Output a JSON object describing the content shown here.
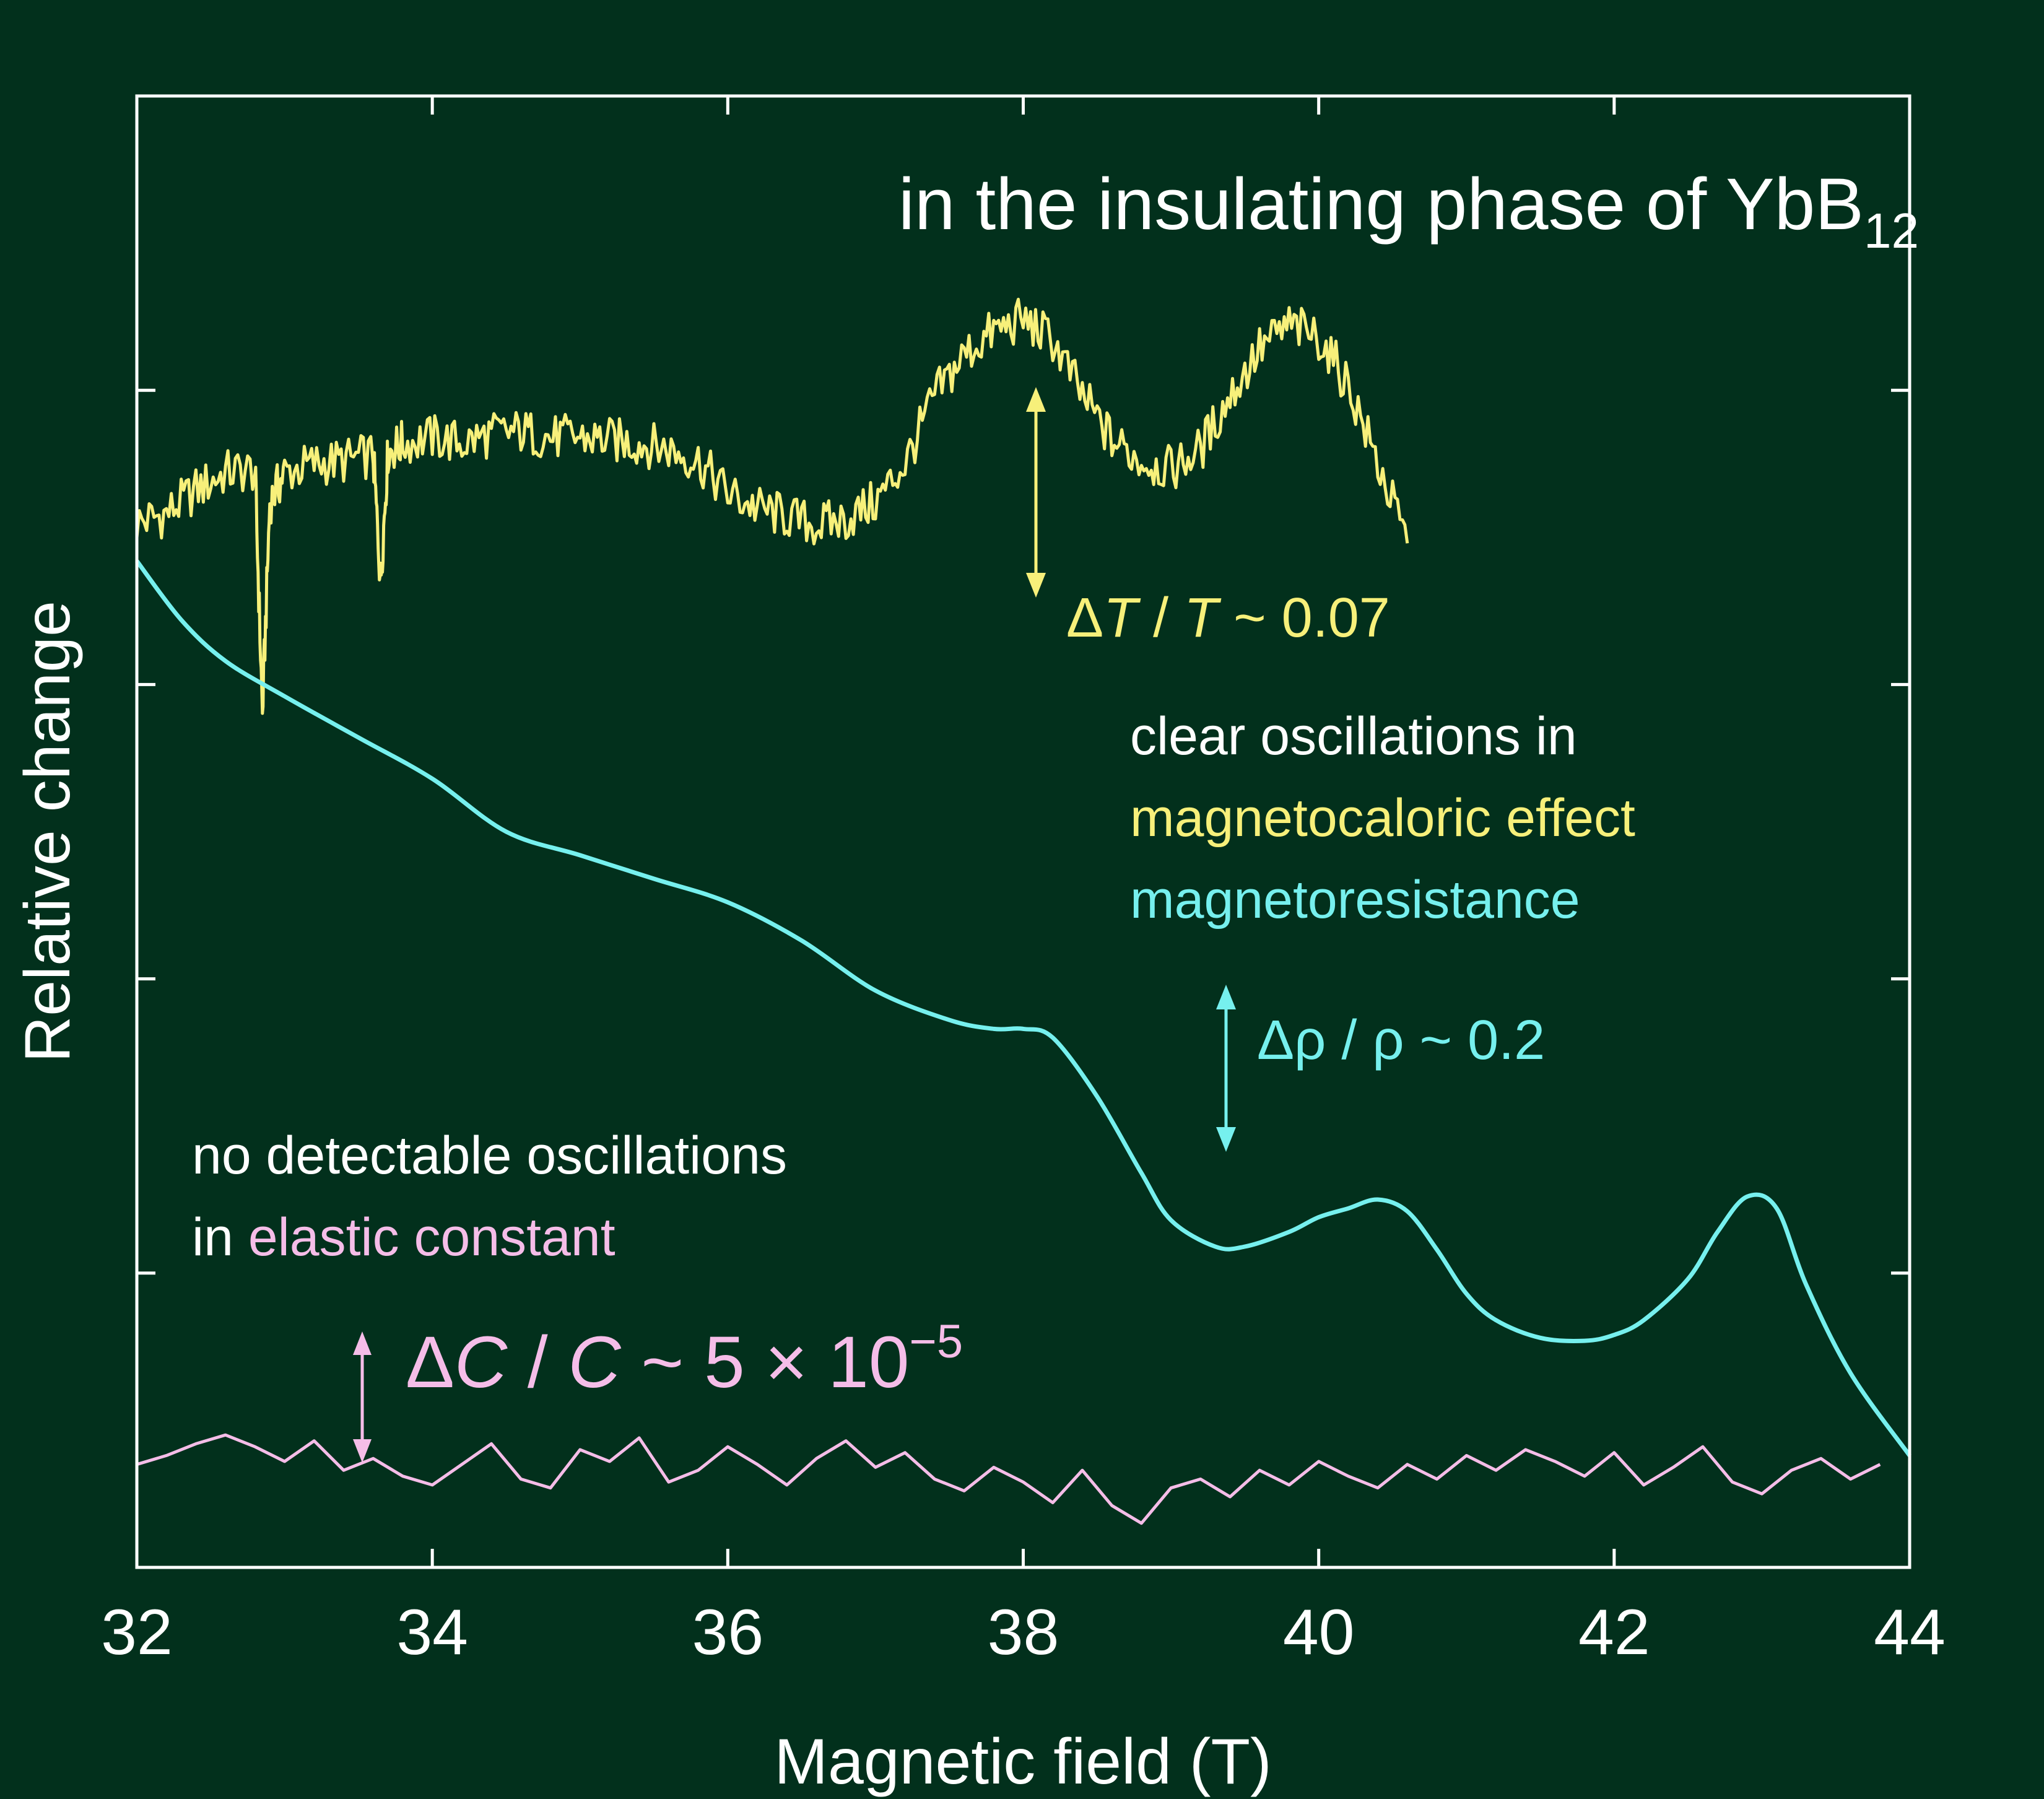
{
  "colors": {
    "background": "#02301c",
    "axes": "#ffffff",
    "magnetocaloric": "#f7f07a",
    "magnetoresistance": "#76f0ee",
    "elastic": "#f5bde8",
    "text": "#ffffff"
  },
  "annotations": {
    "title_main": "in the insulating phase of YbB",
    "title_sub": "12",
    "dT": "ΔT / T ~ 0.07",
    "dT_delta": "Δ",
    "dT_T1": "T",
    "dT_mid": " / ",
    "dT_T2": "T",
    "dT_rest": " ~ 0.07",
    "clear_line1": "clear oscillations in",
    "clear_line2": "magnetocaloric effect",
    "clear_line3": "magnetoresistance",
    "drho": "Δρ / ρ ~ 0.2",
    "none_line1": "no detectable oscillations",
    "none_line2_prefix": "in ",
    "none_line2_colored": "elastic constant",
    "dC_delta": "Δ",
    "dC_C1": "C",
    "dC_mid": " / ",
    "dC_C2": "C",
    "dC_rest": " ~ 5 × 10",
    "dC_exp": "−5"
  },
  "chart_data": {
    "type": "line",
    "title": "in the insulating phase of YbB12",
    "xlabel": "Magnetic field (T)",
    "ylabel": "Relative change",
    "xlim": [
      32,
      44
    ],
    "ylim": [
      0,
      5
    ],
    "xticks": [
      32,
      34,
      36,
      38,
      40,
      42,
      44
    ],
    "yticks": [
      1,
      2,
      3,
      4
    ],
    "show_y_tick_labels": false,
    "grid": false,
    "legend": "none (inline colored labels)",
    "series": [
      {
        "name": "magnetocaloric effect",
        "color": "#f7f07a",
        "style": "noisy",
        "x": [
          32.0,
          32.2,
          32.4,
          32.6,
          32.8,
          32.85,
          32.9,
          33.0,
          33.2,
          33.4,
          33.6,
          33.65,
          33.7,
          33.8,
          34.0,
          34.2,
          34.4,
          34.6,
          34.8,
          35.0,
          35.2,
          35.4,
          35.6,
          35.8,
          36.0,
          36.2,
          36.4,
          36.6,
          36.8,
          37.0,
          37.2,
          37.4,
          37.6,
          37.8,
          38.0,
          38.2,
          38.4,
          38.6,
          38.8,
          39.0,
          39.2,
          39.4,
          39.6,
          39.8,
          40.0,
          40.2,
          40.4,
          40.6
        ],
        "y": [
          3.55,
          3.58,
          3.66,
          3.72,
          3.73,
          2.9,
          3.62,
          3.72,
          3.75,
          3.76,
          3.78,
          3.35,
          3.79,
          3.82,
          3.84,
          3.82,
          3.85,
          3.86,
          3.84,
          3.84,
          3.83,
          3.82,
          3.8,
          3.76,
          3.65,
          3.6,
          3.57,
          3.54,
          3.56,
          3.62,
          3.75,
          3.98,
          4.12,
          4.2,
          4.24,
          4.17,
          3.98,
          3.83,
          3.76,
          3.73,
          3.8,
          3.98,
          4.14,
          4.22,
          4.18,
          4.02,
          3.75,
          3.48
        ]
      },
      {
        "name": "magnetoresistance",
        "color": "#76f0ee",
        "style": "smooth",
        "x": [
          32.0,
          32.3,
          32.6,
          33.0,
          33.5,
          34.0,
          34.5,
          35.0,
          35.5,
          36.0,
          36.5,
          37.0,
          37.5,
          37.8,
          38.0,
          38.2,
          38.5,
          38.8,
          39.0,
          39.3,
          39.5,
          39.8,
          40.0,
          40.2,
          40.4,
          40.6,
          40.8,
          41.0,
          41.2,
          41.5,
          41.8,
          42.0,
          42.2,
          42.5,
          42.7,
          42.9,
          43.1,
          43.3,
          43.6,
          44.0
        ],
        "y": [
          3.42,
          3.22,
          3.08,
          2.96,
          2.82,
          2.68,
          2.5,
          2.42,
          2.34,
          2.26,
          2.13,
          1.96,
          1.86,
          1.83,
          1.83,
          1.8,
          1.6,
          1.34,
          1.18,
          1.09,
          1.09,
          1.14,
          1.19,
          1.22,
          1.25,
          1.21,
          1.08,
          0.93,
          0.84,
          0.78,
          0.77,
          0.79,
          0.84,
          0.98,
          1.14,
          1.26,
          1.22,
          0.96,
          0.66,
          0.38
        ]
      },
      {
        "name": "elastic constant",
        "color": "#f5bde8",
        "style": "jagged",
        "x": [
          32.0,
          32.2,
          32.4,
          32.6,
          32.8,
          33.0,
          33.2,
          33.4,
          33.6,
          33.8,
          34.0,
          34.2,
          34.4,
          34.6,
          34.8,
          35.0,
          35.2,
          35.4,
          35.6,
          35.8,
          36.0,
          36.2,
          36.4,
          36.6,
          36.8,
          37.0,
          37.2,
          37.4,
          37.6,
          37.8,
          38.0,
          38.2,
          38.4,
          38.6,
          38.8,
          39.0,
          39.2,
          39.4,
          39.6,
          39.8,
          40.0,
          40.2,
          40.4,
          40.6,
          40.8,
          41.0,
          41.2,
          41.4,
          41.6,
          41.8,
          42.0,
          42.2,
          42.4,
          42.6,
          42.8,
          43.0,
          43.2,
          43.4,
          43.6,
          43.8
        ],
        "y": [
          0.35,
          0.38,
          0.42,
          0.45,
          0.41,
          0.36,
          0.43,
          0.33,
          0.37,
          0.31,
          0.28,
          0.35,
          0.42,
          0.3,
          0.27,
          0.4,
          0.36,
          0.44,
          0.29,
          0.33,
          0.41,
          0.35,
          0.28,
          0.37,
          0.43,
          0.34,
          0.39,
          0.3,
          0.26,
          0.34,
          0.29,
          0.22,
          0.33,
          0.21,
          0.15,
          0.27,
          0.3,
          0.24,
          0.33,
          0.28,
          0.36,
          0.31,
          0.27,
          0.35,
          0.3,
          0.38,
          0.33,
          0.4,
          0.36,
          0.31,
          0.39,
          0.28,
          0.34,
          0.41,
          0.29,
          0.25,
          0.33,
          0.37,
          0.3,
          0.35
        ]
      }
    ]
  }
}
